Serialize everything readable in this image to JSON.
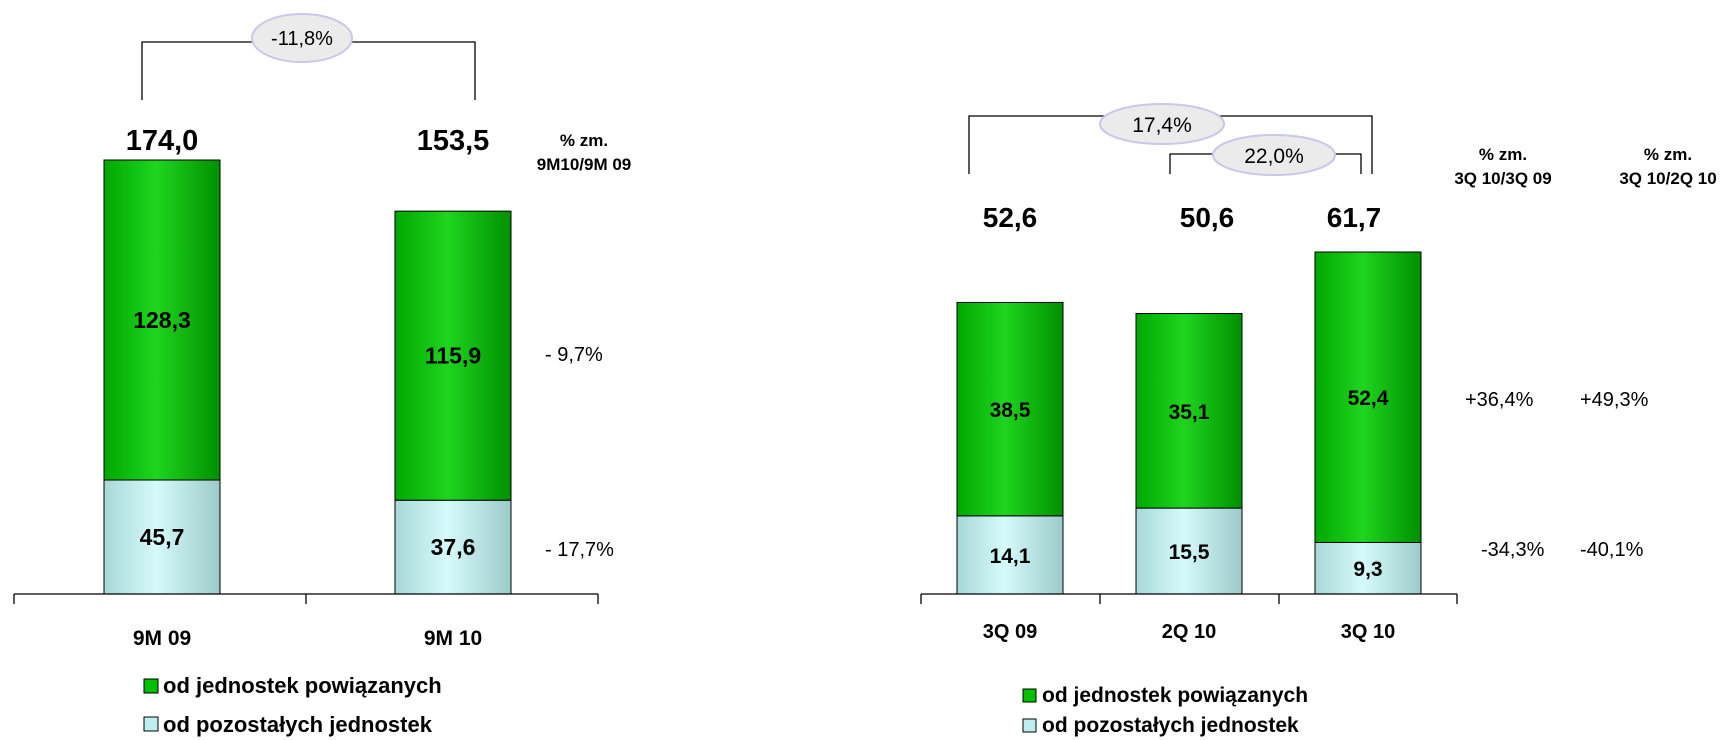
{
  "colors": {
    "green_bar": "#00c000",
    "green_dark": "#007a00",
    "cyan_bar": "#bfeeee",
    "cyan_dark": "#5f8f8f",
    "bubble_fill": "#ebebeb",
    "bubble_stroke": "#c8c8e8"
  },
  "chart_data": [
    {
      "type": "bar",
      "stacked": true,
      "categories": [
        "9M 09",
        "9M 10"
      ],
      "series": [
        {
          "name": "od pozostałych jednostek",
          "values": [
            45.7,
            37.6
          ],
          "labels": [
            "45,7",
            "37,6"
          ],
          "color": "#bfeeee"
        },
        {
          "name": "od jednostek powiązanych",
          "values": [
            128.3,
            115.9
          ],
          "labels": [
            "128,3",
            "115,9"
          ],
          "color": "#00c000"
        }
      ],
      "totals": [
        "174,0",
        "153,5"
      ],
      "total_values": [
        174.0,
        153.5
      ],
      "change_header": [
        "% zm.",
        "9M10/9M 09"
      ],
      "changes": {
        "green": "- 9,7%",
        "cyan": "- 17,7%"
      },
      "comparisons": [
        {
          "label": "-11,8%",
          "from": 0,
          "to": 1
        }
      ],
      "legend": [
        "od jednostek powiązanych",
        "od pozostałych jednostek"
      ],
      "legend_position": "bottom"
    },
    {
      "type": "bar",
      "stacked": true,
      "categories": [
        "3Q 09",
        "2Q 10",
        "3Q 10"
      ],
      "series": [
        {
          "name": "od pozostałych jednostek",
          "values": [
            14.1,
            15.5,
            9.3
          ],
          "labels": [
            "14,1",
            "15,5",
            "9,3"
          ],
          "color": "#bfeeee"
        },
        {
          "name": "od jednostek powiązanych",
          "values": [
            38.5,
            35.1,
            52.4
          ],
          "labels": [
            "38,5",
            "35,1",
            "52,4"
          ],
          "color": "#00c000"
        }
      ],
      "totals": [
        "52,6",
        "50,6",
        "61,7"
      ],
      "total_values": [
        52.6,
        50.6,
        61.7
      ],
      "change_headers": [
        {
          "line1": "% zm.",
          "line2": "3Q 10/3Q 09"
        },
        {
          "line1": "% zm.",
          "line2": "3Q 10/2Q 10"
        }
      ],
      "changes": [
        {
          "green": "+36,4%",
          "cyan": "-34,3%"
        },
        {
          "green": "+49,3%",
          "cyan": "-40,1%"
        }
      ],
      "comparisons": [
        {
          "label": "17,4%",
          "from": 0,
          "to": 2
        },
        {
          "label": "22,0%",
          "from": 1,
          "to": 2
        }
      ],
      "legend": [
        "od jednostek powiązanych",
        "od pozostałych jednostek"
      ],
      "legend_position": "bottom"
    }
  ]
}
